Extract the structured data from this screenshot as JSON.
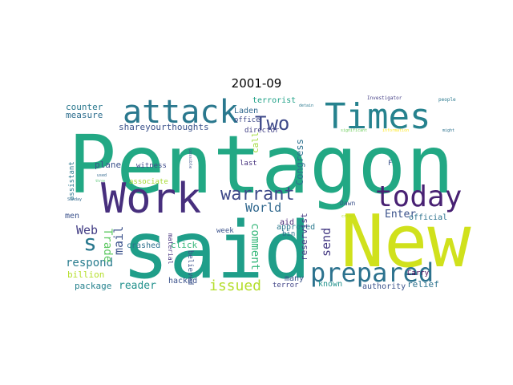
{
  "chart_data": {
    "type": "wordcloud",
    "title": "2001-09",
    "colormap": "viridis",
    "background": "#ffffff",
    "axes": "off",
    "words": [
      {
        "text": "Pentagon",
        "weight": 1.0,
        "color": "#22a884"
      },
      {
        "text": "said",
        "weight": 0.95,
        "color": "#1f9e89"
      },
      {
        "text": "New",
        "weight": 0.9,
        "color": "#d0e11c"
      },
      {
        "text": "Work",
        "weight": 0.75,
        "color": "#472f7d"
      },
      {
        "text": "Times",
        "weight": 0.6,
        "color": "#26828e"
      },
      {
        "text": "attack",
        "weight": 0.55,
        "color": "#2a788e"
      },
      {
        "text": "today",
        "weight": 0.5,
        "color": "#482173"
      },
      {
        "text": "prepared",
        "weight": 0.48,
        "color": "#2c728e"
      },
      {
        "text": "warrant",
        "weight": 0.35,
        "color": "#3e4989"
      },
      {
        "text": "Two",
        "weight": 0.35,
        "color": "#3e4989"
      },
      {
        "text": "issued",
        "weight": 0.28,
        "color": "#b5de2b"
      },
      {
        "text": "s",
        "weight": 0.28,
        "color": "#2a788e"
      },
      {
        "text": "World",
        "weight": 0.2,
        "color": "#31688e"
      },
      {
        "text": "Web",
        "weight": 0.2,
        "color": "#433e85"
      },
      {
        "text": "respond",
        "weight": 0.2,
        "color": "#287c8e"
      },
      {
        "text": "mail",
        "weight": 0.2,
        "color": "#3b518b"
      },
      {
        "text": "Trade",
        "weight": 0.2,
        "color": "#5ec962"
      },
      {
        "text": "comment",
        "weight": 0.2,
        "color": "#35b779"
      },
      {
        "text": "send",
        "weight": 0.2,
        "color": "#443983"
      },
      {
        "text": "Enter",
        "weight": 0.18,
        "color": "#3b528b"
      },
      {
        "text": "reader",
        "weight": 0.18,
        "color": "#21918c"
      },
      {
        "text": "counter",
        "weight": 0.15,
        "color": "#2a788e"
      },
      {
        "text": "terrorist",
        "weight": 0.15,
        "color": "#1fa187"
      },
      {
        "text": "Laden",
        "weight": 0.14,
        "color": "#31688e"
      },
      {
        "text": "measure",
        "weight": 0.14,
        "color": "#2e6e8e"
      },
      {
        "text": "shareyourthoughts",
        "weight": 0.14,
        "color": "#3b528b"
      },
      {
        "text": "office",
        "weight": 0.14,
        "color": "#3e4989"
      },
      {
        "text": "director",
        "weight": 0.13,
        "color": "#424086"
      },
      {
        "text": "Congress",
        "weight": 0.13,
        "color": "#2d708e"
      },
      {
        "text": "plane",
        "weight": 0.13,
        "color": "#3b528b"
      },
      {
        "text": "witness",
        "weight": 0.13,
        "color": "#3e4989"
      },
      {
        "text": "associate",
        "weight": 0.13,
        "color": "#a8db34"
      },
      {
        "text": "crashed",
        "weight": 0.13,
        "color": "#2d708e"
      },
      {
        "text": "click",
        "weight": 0.13,
        "color": "#35b779"
      },
      {
        "text": "approved",
        "weight": 0.13,
        "color": "#2a788e"
      },
      {
        "text": "reservist",
        "weight": 0.12,
        "color": "#443983"
      },
      {
        "text": "relief",
        "weight": 0.12,
        "color": "#2c728e"
      },
      {
        "text": "official",
        "weight": 0.12,
        "color": "#2c728e"
      },
      {
        "text": "billion",
        "weight": 0.12,
        "color": "#b5de2b"
      },
      {
        "text": "package",
        "weight": 0.12,
        "color": "#26828e"
      },
      {
        "text": "hacked",
        "weight": 0.12,
        "color": "#3b528b"
      },
      {
        "text": "known",
        "weight": 0.12,
        "color": "#21918c"
      },
      {
        "text": "authority",
        "weight": 0.12,
        "color": "#3b528b"
      },
      {
        "text": "many",
        "weight": 0.12,
        "color": "#3b528b"
      },
      {
        "text": "Carry",
        "weight": 0.11,
        "color": "#440154"
      },
      {
        "text": "terror",
        "weight": 0.11,
        "color": "#414487"
      },
      {
        "text": "believed",
        "weight": 0.11,
        "color": "#3b528b"
      },
      {
        "text": "material",
        "weight": 0.11,
        "color": "#46327e"
      },
      {
        "text": "aid",
        "weight": 0.11,
        "color": "#482878"
      },
      {
        "text": "bin",
        "weight": 0.11,
        "color": "#2c728e"
      },
      {
        "text": "week",
        "weight": 0.1,
        "color": "#3b528b"
      },
      {
        "text": "last",
        "weight": 0.1,
        "color": "#46327e"
      },
      {
        "text": "call",
        "weight": 0.1,
        "color": "#a0da39"
      },
      {
        "text": "men",
        "weight": 0.1,
        "color": "#3b528b"
      },
      {
        "text": "assistant",
        "weight": 0.1,
        "color": "#2a788e"
      },
      {
        "text": "Dawn",
        "weight": 0.1,
        "color": "#3b528b"
      },
      {
        "text": "F",
        "weight": 0.1,
        "color": "#3b528b"
      },
      {
        "text": "Investigator",
        "weight": 0.06,
        "color": "#433e85"
      },
      {
        "text": "people",
        "weight": 0.06,
        "color": "#2a788e"
      },
      {
        "text": "detain",
        "weight": 0.05,
        "color": "#2a788e"
      },
      {
        "text": "significant",
        "weight": 0.05,
        "color": "#6ccd5a"
      },
      {
        "text": "information",
        "weight": 0.05,
        "color": "#fde725"
      },
      {
        "text": "might",
        "weight": 0.05,
        "color": "#2c728e"
      },
      {
        "text": "Sunday",
        "weight": 0.05,
        "color": "#31688e"
      },
      {
        "text": "possible",
        "weight": 0.05,
        "color": "#3b528b"
      },
      {
        "text": "crime",
        "weight": 0.05,
        "color": "#b5de2b"
      },
      {
        "text": "three",
        "weight": 0.05,
        "color": "#4ac16d"
      },
      {
        "text": "used",
        "weight": 0.05,
        "color": "#31688e"
      }
    ]
  }
}
